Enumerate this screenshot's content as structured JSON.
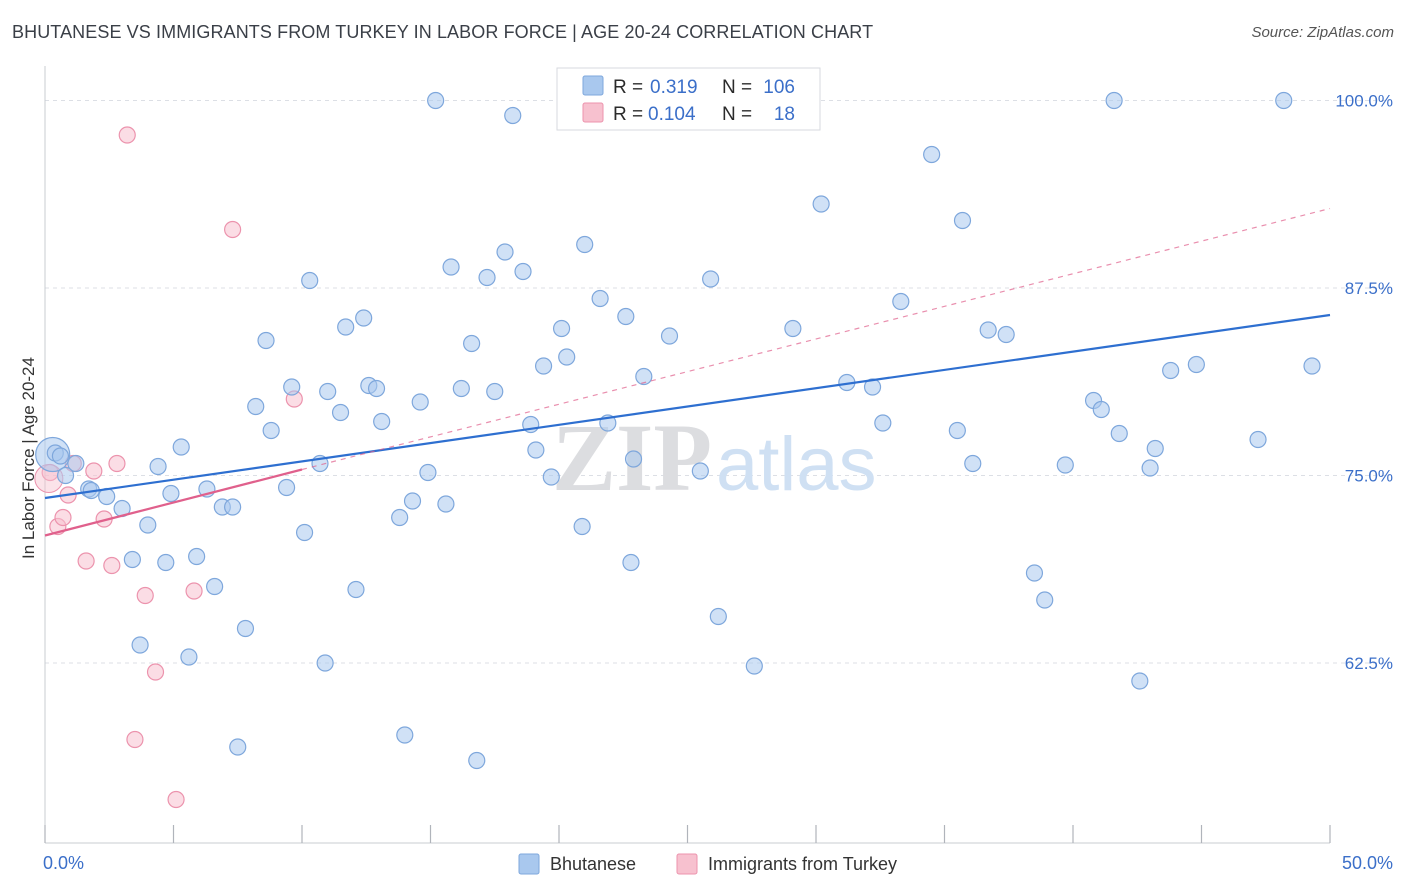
{
  "title": "BHUTANESE VS IMMIGRANTS FROM TURKEY IN LABOR FORCE | AGE 20-24 CORRELATION CHART",
  "source": "Source: ZipAtlas.com",
  "watermark": {
    "zip": "ZIP",
    "atlas": "atlas"
  },
  "colors": {
    "blue_fill": "#a9c8ee",
    "blue_stroke": "#7ea7dc",
    "blue_line": "#2e6fd0",
    "pink_fill": "#f7c1cf",
    "pink_stroke": "#ec93ad",
    "pink_line": "#e0608c",
    "grid": "#dcdfe5",
    "tick_text": "#3b6fc9"
  },
  "legend": {
    "rows": [
      {
        "r_label": "R =",
        "r_value": "0.319",
        "n_label": "N =",
        "n_value": "106",
        "swatch": "blue"
      },
      {
        "r_label": "R =",
        "r_value": "0.104",
        "n_label": "N =",
        "n_value": "18",
        "swatch": "pink"
      }
    ]
  },
  "bottom_legend": [
    "Bhutanese",
    "Immigrants from Turkey"
  ],
  "chart_data": {
    "type": "scatter",
    "title": "BHUTANESE VS IMMIGRANTS FROM TURKEY IN LABOR FORCE | AGE 20-24 CORRELATION CHART",
    "xlabel": "",
    "ylabel": "In Labor Force | Age 20-24",
    "xlim": [
      0,
      50
    ],
    "ylim": [
      50.5,
      101.5
    ],
    "x_tick_labels": [
      "0.0%",
      "50.0%"
    ],
    "y_ticks": [
      62.5,
      75.0,
      87.5,
      100.0
    ],
    "y_tick_labels": [
      "62.5%",
      "75.0%",
      "87.5%",
      "100.0%"
    ],
    "grid": true,
    "legend_position": "top-center",
    "series": [
      {
        "name": "Bhutanese",
        "color": "#a9c8ee",
        "trend": {
          "x": [
            0,
            50
          ],
          "y": [
            73.5,
            85.7
          ]
        },
        "points": [
          [
            0.4,
            76.5
          ],
          [
            0.6,
            76.3
          ],
          [
            0.8,
            75.0
          ],
          [
            1.2,
            75.8
          ],
          [
            1.7,
            74.1
          ],
          [
            1.8,
            74.0
          ],
          [
            2.4,
            73.6
          ],
          [
            3.0,
            72.8
          ],
          [
            3.4,
            69.4
          ],
          [
            3.7,
            63.7
          ],
          [
            4.0,
            71.7
          ],
          [
            4.4,
            75.6
          ],
          [
            4.7,
            69.2
          ],
          [
            4.9,
            73.8
          ],
          [
            5.3,
            76.9
          ],
          [
            5.6,
            62.9
          ],
          [
            5.9,
            69.6
          ],
          [
            6.3,
            74.1
          ],
          [
            6.6,
            67.6
          ],
          [
            6.9,
            72.9
          ],
          [
            7.3,
            72.9
          ],
          [
            7.5,
            56.9
          ],
          [
            7.8,
            64.8
          ],
          [
            8.2,
            79.6
          ],
          [
            8.6,
            84.0
          ],
          [
            8.8,
            78.0
          ],
          [
            9.4,
            74.2
          ],
          [
            9.6,
            80.9
          ],
          [
            10.1,
            71.2
          ],
          [
            10.3,
            88.0
          ],
          [
            10.7,
            75.8
          ],
          [
            10.9,
            62.5
          ],
          [
            11.0,
            80.6
          ],
          [
            11.5,
            79.2
          ],
          [
            11.7,
            84.9
          ],
          [
            12.1,
            67.4
          ],
          [
            12.4,
            85.5
          ],
          [
            12.6,
            81.0
          ],
          [
            12.9,
            80.8
          ],
          [
            13.1,
            78.6
          ],
          [
            13.8,
            72.2
          ],
          [
            14.0,
            57.7
          ],
          [
            14.3,
            73.3
          ],
          [
            14.6,
            79.9
          ],
          [
            14.9,
            75.2
          ],
          [
            15.2,
            100.0
          ],
          [
            15.6,
            73.1
          ],
          [
            15.8,
            88.9
          ],
          [
            16.2,
            80.8
          ],
          [
            16.6,
            83.8
          ],
          [
            16.8,
            56.0
          ],
          [
            17.2,
            88.2
          ],
          [
            17.5,
            80.6
          ],
          [
            17.9,
            89.9
          ],
          [
            18.2,
            99.0
          ],
          [
            18.6,
            88.6
          ],
          [
            18.9,
            78.4
          ],
          [
            19.1,
            76.7
          ],
          [
            19.4,
            82.3
          ],
          [
            19.7,
            74.9
          ],
          [
            20.1,
            84.8
          ],
          [
            20.3,
            82.9
          ],
          [
            20.9,
            71.6
          ],
          [
            21.0,
            90.4
          ],
          [
            21.6,
            86.8
          ],
          [
            21.9,
            78.5
          ],
          [
            22.6,
            85.6
          ],
          [
            22.8,
            69.2
          ],
          [
            22.9,
            76.1
          ],
          [
            23.3,
            81.6
          ],
          [
            24.3,
            84.3
          ],
          [
            25.3,
            100.0
          ],
          [
            25.5,
            75.3
          ],
          [
            25.9,
            88.1
          ],
          [
            26.2,
            65.6
          ],
          [
            27.6,
            62.3
          ],
          [
            29.1,
            84.8
          ],
          [
            30.2,
            93.1
          ],
          [
            31.2,
            81.2
          ],
          [
            32.2,
            80.9
          ],
          [
            32.6,
            78.5
          ],
          [
            33.3,
            86.6
          ],
          [
            34.5,
            96.4
          ],
          [
            35.5,
            78.0
          ],
          [
            35.7,
            92.0
          ],
          [
            36.1,
            75.8
          ],
          [
            36.7,
            84.7
          ],
          [
            37.4,
            84.4
          ],
          [
            38.5,
            68.5
          ],
          [
            38.9,
            66.7
          ],
          [
            39.7,
            75.7
          ],
          [
            40.8,
            80.0
          ],
          [
            41.1,
            79.4
          ],
          [
            41.6,
            100.0
          ],
          [
            41.8,
            77.8
          ],
          [
            42.6,
            61.3
          ],
          [
            43.0,
            75.5
          ],
          [
            43.2,
            76.8
          ],
          [
            43.8,
            82.0
          ],
          [
            44.8,
            82.4
          ],
          [
            47.2,
            77.4
          ],
          [
            48.2,
            100.0
          ],
          [
            49.3,
            82.3
          ]
        ]
      },
      {
        "name": "Immigrants from Turkey",
        "color": "#f7c1cf",
        "trend": {
          "x": [
            0,
            10
          ],
          "y": [
            71.0,
            75.4
          ]
        },
        "trend_dashed": {
          "x": [
            10,
            50
          ],
          "y": [
            75.4,
            92.8
          ]
        },
        "points": [
          [
            0.2,
            75.2
          ],
          [
            0.5,
            71.6
          ],
          [
            0.7,
            72.2
          ],
          [
            0.9,
            73.7
          ],
          [
            1.1,
            75.8
          ],
          [
            1.6,
            69.3
          ],
          [
            1.9,
            75.3
          ],
          [
            2.3,
            72.1
          ],
          [
            2.6,
            69.0
          ],
          [
            2.8,
            75.8
          ],
          [
            3.2,
            97.7
          ],
          [
            3.5,
            57.4
          ],
          [
            3.9,
            67.0
          ],
          [
            4.3,
            61.9
          ],
          [
            5.1,
            53.4
          ],
          [
            5.8,
            67.3
          ],
          [
            7.3,
            91.4
          ],
          [
            9.7,
            80.1
          ]
        ]
      }
    ]
  }
}
